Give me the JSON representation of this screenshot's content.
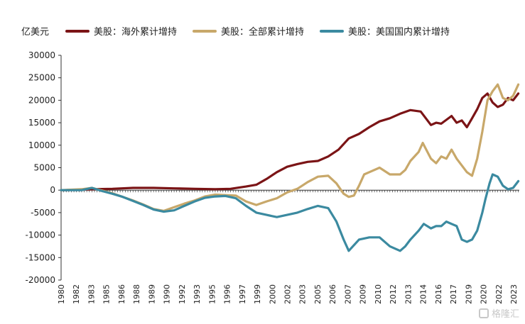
{
  "unit_label": "亿美元",
  "watermark": "格隆汇",
  "colors": {
    "overseas": "#7b1416",
    "total": "#c8a86a",
    "domestic": "#3b8aa0",
    "axis": "#333333"
  },
  "chart_data": {
    "type": "line",
    "ylabel": "亿美元",
    "ylim": [
      -20000,
      30000
    ],
    "yticks": [
      30000,
      25000,
      20000,
      15000,
      10000,
      5000,
      0,
      -5000,
      -10000,
      -15000,
      -20000
    ],
    "xlim": [
      1980,
      2024.6
    ],
    "xticks": [
      "1980",
      "1982",
      "1983",
      "1985",
      "1986",
      "1988",
      "1989",
      "1990",
      "1992",
      "1993",
      "1995",
      "1996",
      "1997",
      "1999",
      "2000",
      "2002",
      "2003",
      "2005",
      "2006",
      "2007",
      "2009",
      "2010",
      "2012",
      "2013",
      "2014",
      "2016",
      "2017",
      "2019",
      "2020",
      "2022",
      "2023"
    ],
    "legend": "top",
    "series": [
      {
        "name": "美股：海外累计增持",
        "color": "#7b1416",
        "points": [
          [
            1980,
            0
          ],
          [
            1982,
            100
          ],
          [
            1983,
            200
          ],
          [
            1985,
            300
          ],
          [
            1987,
            500
          ],
          [
            1989,
            500
          ],
          [
            1991,
            400
          ],
          [
            1993,
            300
          ],
          [
            1995,
            200
          ],
          [
            1996.5,
            300
          ],
          [
            1998,
            800
          ],
          [
            1999,
            1200
          ],
          [
            2000,
            2500
          ],
          [
            2001,
            4000
          ],
          [
            2002,
            5200
          ],
          [
            2003,
            5800
          ],
          [
            2004,
            6300
          ],
          [
            2005,
            6500
          ],
          [
            2006,
            7500
          ],
          [
            2007,
            9000
          ],
          [
            2008,
            11500
          ],
          [
            2009,
            12500
          ],
          [
            2010,
            14000
          ],
          [
            2011,
            15300
          ],
          [
            2012,
            16000
          ],
          [
            2013,
            17000
          ],
          [
            2014,
            17800
          ],
          [
            2015,
            17500
          ],
          [
            2016,
            14500
          ],
          [
            2016.5,
            15000
          ],
          [
            2017,
            14800
          ],
          [
            2018,
            16500
          ],
          [
            2018.5,
            15000
          ],
          [
            2019,
            15500
          ],
          [
            2019.5,
            14000
          ],
          [
            2020,
            16000
          ],
          [
            2020.5,
            18000
          ],
          [
            2021,
            20500
          ],
          [
            2021.5,
            21500
          ],
          [
            2022,
            19500
          ],
          [
            2022.5,
            18500
          ],
          [
            2023,
            19000
          ],
          [
            2023.5,
            20500
          ],
          [
            2024,
            20000
          ],
          [
            2024.5,
            21500
          ]
        ]
      },
      {
        "name": "美股：全部累计增持",
        "color": "#c8a86a",
        "points": [
          [
            1980,
            0
          ],
          [
            1982,
            200
          ],
          [
            1983,
            500
          ],
          [
            1984,
            -100
          ],
          [
            1985,
            -700
          ],
          [
            1986,
            -1500
          ],
          [
            1987,
            -2300
          ],
          [
            1988,
            -3200
          ],
          [
            1989,
            -4200
          ],
          [
            1990,
            -4600
          ],
          [
            1991,
            -3800
          ],
          [
            1992,
            -3000
          ],
          [
            1993,
            -2300
          ],
          [
            1994,
            -1400
          ],
          [
            1995,
            -1000
          ],
          [
            1996,
            -1100
          ],
          [
            1997,
            -1200
          ],
          [
            1998,
            -2500
          ],
          [
            1999,
            -3300
          ],
          [
            2000,
            -2500
          ],
          [
            2001,
            -1800
          ],
          [
            2002,
            -500
          ],
          [
            2003,
            300
          ],
          [
            2004,
            1800
          ],
          [
            2005,
            3000
          ],
          [
            2006,
            3200
          ],
          [
            2006.8,
            1500
          ],
          [
            2007.5,
            -800
          ],
          [
            2008,
            -1500
          ],
          [
            2008.5,
            -1200
          ],
          [
            2009,
            1000
          ],
          [
            2009.5,
            3500
          ],
          [
            2010,
            4000
          ],
          [
            2011,
            5000
          ],
          [
            2012,
            3500
          ],
          [
            2013,
            3500
          ],
          [
            2013.5,
            4500
          ],
          [
            2014,
            6500
          ],
          [
            2014.8,
            8500
          ],
          [
            2015.2,
            10500
          ],
          [
            2016,
            7000
          ],
          [
            2016.5,
            6000
          ],
          [
            2017,
            7500
          ],
          [
            2017.5,
            7000
          ],
          [
            2018,
            9000
          ],
          [
            2018.5,
            7000
          ],
          [
            2019,
            5500
          ],
          [
            2019.5,
            4000
          ],
          [
            2020,
            3200
          ],
          [
            2020.5,
            7000
          ],
          [
            2021,
            13000
          ],
          [
            2021.5,
            20000
          ],
          [
            2022,
            22000
          ],
          [
            2022.5,
            23500
          ],
          [
            2023,
            20500
          ],
          [
            2023.5,
            20000
          ],
          [
            2024,
            21000
          ],
          [
            2024.5,
            23500
          ]
        ]
      },
      {
        "name": "美股：美国国内累计增持",
        "color": "#3b8aa0",
        "points": [
          [
            1980,
            0
          ],
          [
            1982,
            0
          ],
          [
            1983,
            500
          ],
          [
            1984,
            -200
          ],
          [
            1985,
            -800
          ],
          [
            1986,
            -1500
          ],
          [
            1987,
            -2400
          ],
          [
            1988,
            -3300
          ],
          [
            1989,
            -4300
          ],
          [
            1990,
            -4800
          ],
          [
            1991,
            -4500
          ],
          [
            1992,
            -3500
          ],
          [
            1993,
            -2500
          ],
          [
            1994,
            -1700
          ],
          [
            1995,
            -1400
          ],
          [
            1996,
            -1300
          ],
          [
            1997,
            -1800
          ],
          [
            1998,
            -3500
          ],
          [
            1999,
            -5000
          ],
          [
            2000,
            -5500
          ],
          [
            2001,
            -6000
          ],
          [
            2002,
            -5500
          ],
          [
            2003,
            -5000
          ],
          [
            2004,
            -4200
          ],
          [
            2005,
            -3500
          ],
          [
            2006,
            -4000
          ],
          [
            2006.8,
            -7000
          ],
          [
            2007.5,
            -11000
          ],
          [
            2008,
            -13500
          ],
          [
            2009,
            -11000
          ],
          [
            2010,
            -10500
          ],
          [
            2011,
            -10500
          ],
          [
            2012,
            -12500
          ],
          [
            2013,
            -13500
          ],
          [
            2013.5,
            -12500
          ],
          [
            2014,
            -11000
          ],
          [
            2014.8,
            -9000
          ],
          [
            2015.3,
            -7500
          ],
          [
            2016,
            -8500
          ],
          [
            2016.5,
            -8000
          ],
          [
            2017,
            -8000
          ],
          [
            2017.5,
            -7000
          ],
          [
            2018,
            -7500
          ],
          [
            2018.5,
            -8000
          ],
          [
            2019,
            -11000
          ],
          [
            2019.5,
            -11500
          ],
          [
            2020,
            -11000
          ],
          [
            2020.5,
            -9000
          ],
          [
            2021,
            -5000
          ],
          [
            2021.3,
            -2000
          ],
          [
            2021.7,
            1500
          ],
          [
            2022,
            3500
          ],
          [
            2022.5,
            3000
          ],
          [
            2023,
            1000
          ],
          [
            2023.5,
            200
          ],
          [
            2024,
            500
          ],
          [
            2024.5,
            2000
          ]
        ]
      }
    ]
  }
}
